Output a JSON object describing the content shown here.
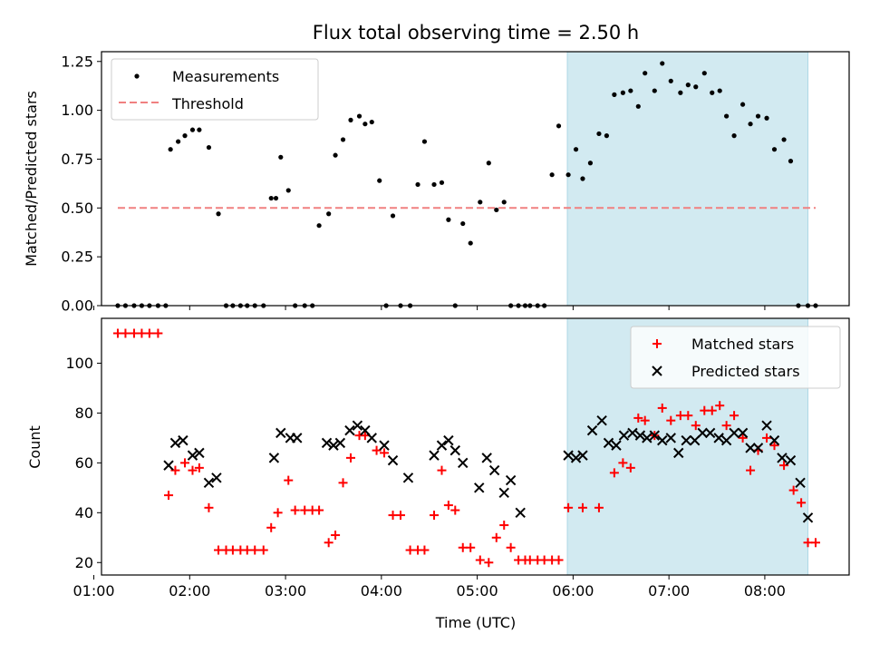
{
  "figure": {
    "title": "Flux total observing time = 2.50 h"
  },
  "chart_data": [
    {
      "type": "scatter",
      "ylabel": "Matched/Predicted stars",
      "xlabel": "",
      "xlim": [
        1.08,
        8.88
      ],
      "ylim": [
        0,
        1.3
      ],
      "yticks": [
        0,
        0.25,
        0.5,
        0.75,
        1.0,
        1.25
      ],
      "ytick_labels": [
        "0.00",
        "0.25",
        "0.50",
        "0.75",
        "1.00",
        "1.25"
      ],
      "shaded_span": [
        5.94,
        8.45
      ],
      "shade_color": "#add8e6",
      "legend": {
        "position": "upper-left",
        "entries": [
          "Measurements",
          "Threshold"
        ]
      },
      "series": [
        {
          "name": "Measurements",
          "marker": "dot",
          "color": "#000000",
          "x": [
            1.25,
            1.33,
            1.42,
            1.5,
            1.58,
            1.67,
            1.75,
            1.8,
            1.88,
            1.95,
            2.03,
            2.1,
            2.2,
            2.3,
            2.38,
            2.45,
            2.53,
            2.6,
            2.68,
            2.77,
            2.85,
            2.9,
            2.95,
            3.03,
            3.1,
            3.2,
            3.28,
            3.35,
            3.45,
            3.52,
            3.6,
            3.68,
            3.77,
            3.83,
            3.9,
            3.98,
            4.05,
            4.12,
            4.2,
            4.3,
            4.38,
            4.45,
            4.55,
            4.63,
            4.7,
            4.77,
            4.85,
            4.93,
            5.03,
            5.12,
            5.2,
            5.28,
            5.35,
            5.43,
            5.5,
            5.55,
            5.63,
            5.7,
            5.78,
            5.85,
            5.95,
            6.03,
            6.1,
            6.18,
            6.27,
            6.35,
            6.43,
            6.52,
            6.6,
            6.68,
            6.75,
            6.85,
            6.93,
            7.02,
            7.12,
            7.2,
            7.28,
            7.37,
            7.45,
            7.53,
            7.6,
            7.68,
            7.77,
            7.85,
            7.93,
            8.02,
            8.1,
            8.2,
            8.27,
            8.35,
            8.45,
            8.53
          ],
          "y": [
            0.0,
            0.0,
            0.0,
            0.0,
            0.0,
            0.0,
            0.0,
            0.8,
            0.84,
            0.87,
            0.9,
            0.9,
            0.81,
            0.47,
            0.0,
            0.0,
            0.0,
            0.0,
            0.0,
            0.0,
            0.55,
            0.55,
            0.76,
            0.59,
            0.0,
            0.0,
            0.0,
            0.41,
            0.47,
            0.77,
            0.85,
            0.95,
            0.97,
            0.93,
            0.94,
            0.64,
            0.0,
            0.46,
            0.0,
            0.0,
            0.62,
            0.84,
            0.62,
            0.63,
            0.44,
            0.0,
            0.42,
            0.32,
            0.53,
            0.73,
            0.49,
            0.53,
            0.0,
            0.0,
            0.0,
            0.0,
            0.0,
            0.0,
            0.67,
            0.92,
            0.67,
            0.8,
            0.65,
            0.73,
            0.88,
            0.87,
            1.08,
            1.09,
            1.1,
            1.02,
            1.19,
            1.1,
            1.24,
            1.15,
            1.09,
            1.13,
            1.12,
            1.19,
            1.09,
            1.1,
            0.97,
            0.87,
            1.03,
            0.93,
            0.97,
            0.96,
            0.8,
            0.85,
            0.74,
            0.0,
            0.0,
            0.0
          ]
        },
        {
          "name": "Threshold",
          "marker": "dashed-line",
          "color": "#f08080",
          "x": [
            1.25,
            8.53
          ],
          "y": [
            0.5,
            0.5
          ]
        }
      ]
    },
    {
      "type": "scatter",
      "ylabel": "Count",
      "xlabel": "Time (UTC)",
      "xlim": [
        1.08,
        8.88
      ],
      "ylim": [
        15,
        118
      ],
      "yticks": [
        20,
        40,
        60,
        80,
        100
      ],
      "ytick_labels": [
        "20",
        "40",
        "60",
        "80",
        "100"
      ],
      "xticks": [
        1,
        2,
        3,
        4,
        5,
        6,
        7,
        8
      ],
      "xtick_labels": [
        "01:00",
        "02:00",
        "03:00",
        "04:00",
        "05:00",
        "06:00",
        "07:00",
        "08:00"
      ],
      "shaded_span": [
        5.94,
        8.45
      ],
      "shade_color": "#add8e6",
      "legend": {
        "position": "upper-right",
        "entries": [
          "Matched stars",
          "Predicted stars"
        ]
      },
      "series": [
        {
          "name": "Matched stars",
          "marker": "plus",
          "color": "#ff0000",
          "x": [
            1.25,
            1.33,
            1.42,
            1.5,
            1.58,
            1.67,
            1.78,
            1.85,
            1.95,
            2.03,
            2.1,
            2.2,
            2.3,
            2.38,
            2.45,
            2.53,
            2.6,
            2.68,
            2.77,
            2.85,
            2.92,
            3.03,
            3.1,
            3.2,
            3.28,
            3.35,
            3.45,
            3.52,
            3.6,
            3.68,
            3.77,
            3.83,
            3.95,
            4.03,
            4.12,
            4.2,
            4.3,
            4.38,
            4.45,
            4.55,
            4.63,
            4.7,
            4.77,
            4.85,
            4.93,
            5.03,
            5.12,
            5.2,
            5.28,
            5.35,
            5.43,
            5.5,
            5.55,
            5.63,
            5.7,
            5.78,
            5.85,
            5.95,
            6.1,
            6.27,
            6.43,
            6.52,
            6.6,
            6.68,
            6.75,
            6.85,
            6.93,
            7.02,
            7.12,
            7.2,
            7.28,
            7.37,
            7.45,
            7.53,
            7.6,
            7.68,
            7.77,
            7.85,
            7.93,
            8.02,
            8.1,
            8.2,
            8.3,
            8.38,
            8.45,
            8.53
          ],
          "y": [
            112,
            112,
            112,
            112,
            112,
            112,
            47,
            57,
            60,
            57,
            58,
            42,
            25,
            25,
            25,
            25,
            25,
            25,
            25,
            34,
            40,
            53,
            41,
            41,
            41,
            41,
            28,
            31,
            52,
            62,
            71,
            71,
            65,
            64,
            39,
            39,
            25,
            25,
            25,
            39,
            57,
            43,
            41,
            26,
            26,
            21,
            20,
            30,
            35,
            26,
            21,
            21,
            21,
            21,
            21,
            21,
            21,
            42,
            42,
            42,
            56,
            60,
            58,
            78,
            77,
            71,
            82,
            77,
            79,
            79,
            75,
            81,
            81,
            83,
            75,
            79,
            70,
            57,
            65,
            70,
            67,
            59,
            49,
            44,
            28,
            28
          ]
        },
        {
          "name": "Predicted stars",
          "marker": "x",
          "color": "#000000",
          "x": [
            1.78,
            1.85,
            1.93,
            2.03,
            2.1,
            2.2,
            2.28,
            2.88,
            2.95,
            3.05,
            3.12,
            3.43,
            3.5,
            3.57,
            3.67,
            3.75,
            3.83,
            3.9,
            4.03,
            4.12,
            4.28,
            4.55,
            4.63,
            4.7,
            4.77,
            4.85,
            5.02,
            5.1,
            5.18,
            5.28,
            5.35,
            5.45,
            5.95,
            6.03,
            6.1,
            6.2,
            6.3,
            6.37,
            6.45,
            6.53,
            6.62,
            6.7,
            6.77,
            6.85,
            6.93,
            7.02,
            7.1,
            7.18,
            7.27,
            7.35,
            7.43,
            7.52,
            7.6,
            7.68,
            7.77,
            7.85,
            7.93,
            8.02,
            8.1,
            8.18,
            8.27,
            8.37,
            8.45
          ],
          "y": [
            59,
            68,
            69,
            63,
            64,
            52,
            54,
            62,
            72,
            70,
            70,
            68,
            67,
            68,
            73,
            75,
            73,
            70,
            67,
            61,
            54,
            63,
            67,
            69,
            65,
            60,
            50,
            62,
            57,
            48,
            53,
            40,
            63,
            62,
            63,
            73,
            77,
            68,
            67,
            71,
            72,
            71,
            70,
            71,
            69,
            70,
            64,
            69,
            69,
            72,
            72,
            70,
            69,
            72,
            72,
            66,
            66,
            75,
            69,
            62,
            61,
            52,
            38
          ]
        }
      ]
    }
  ]
}
